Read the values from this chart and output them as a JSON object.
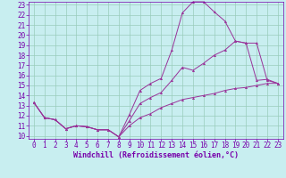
{
  "xlabel": "Windchill (Refroidissement éolien,°C)",
  "ylabel": "",
  "x_values": [
    0,
    1,
    2,
    3,
    4,
    5,
    6,
    7,
    8,
    9,
    10,
    11,
    12,
    13,
    14,
    15,
    16,
    17,
    18,
    19,
    20,
    21,
    22,
    23
  ],
  "line1": [
    13.3,
    11.8,
    11.6,
    10.7,
    11.0,
    10.9,
    10.6,
    10.6,
    9.9,
    12.1,
    14.5,
    15.2,
    15.7,
    18.5,
    22.2,
    23.3,
    23.3,
    22.3,
    21.4,
    19.4,
    19.2,
    15.5,
    15.6,
    15.2
  ],
  "line2": [
    13.3,
    11.8,
    11.6,
    10.7,
    11.0,
    10.9,
    10.6,
    10.6,
    9.9,
    11.5,
    13.2,
    13.8,
    14.3,
    15.5,
    16.8,
    16.5,
    17.2,
    18.0,
    18.5,
    19.4,
    19.2,
    19.2,
    15.5,
    15.2
  ],
  "line3": [
    13.3,
    11.8,
    11.6,
    10.7,
    11.0,
    10.9,
    10.6,
    10.6,
    9.9,
    11.0,
    11.8,
    12.2,
    12.8,
    13.2,
    13.6,
    13.8,
    14.0,
    14.2,
    14.5,
    14.7,
    14.8,
    15.0,
    15.2,
    15.2
  ],
  "line_color": "#993399",
  "bg_color": "#c8eef0",
  "grid_color": "#99ccbb",
  "axis_color": "#7700aa",
  "xlim": [
    -0.5,
    23.5
  ],
  "ylim": [
    9.7,
    23.3
  ],
  "yticks": [
    10,
    11,
    12,
    13,
    14,
    15,
    16,
    17,
    18,
    19,
    20,
    21,
    22,
    23
  ],
  "xticks": [
    0,
    1,
    2,
    3,
    4,
    5,
    6,
    7,
    8,
    9,
    10,
    11,
    12,
    13,
    14,
    15,
    16,
    17,
    18,
    19,
    20,
    21,
    22,
    23
  ],
  "tick_fontsize": 5.5,
  "xlabel_fontsize": 6.0
}
